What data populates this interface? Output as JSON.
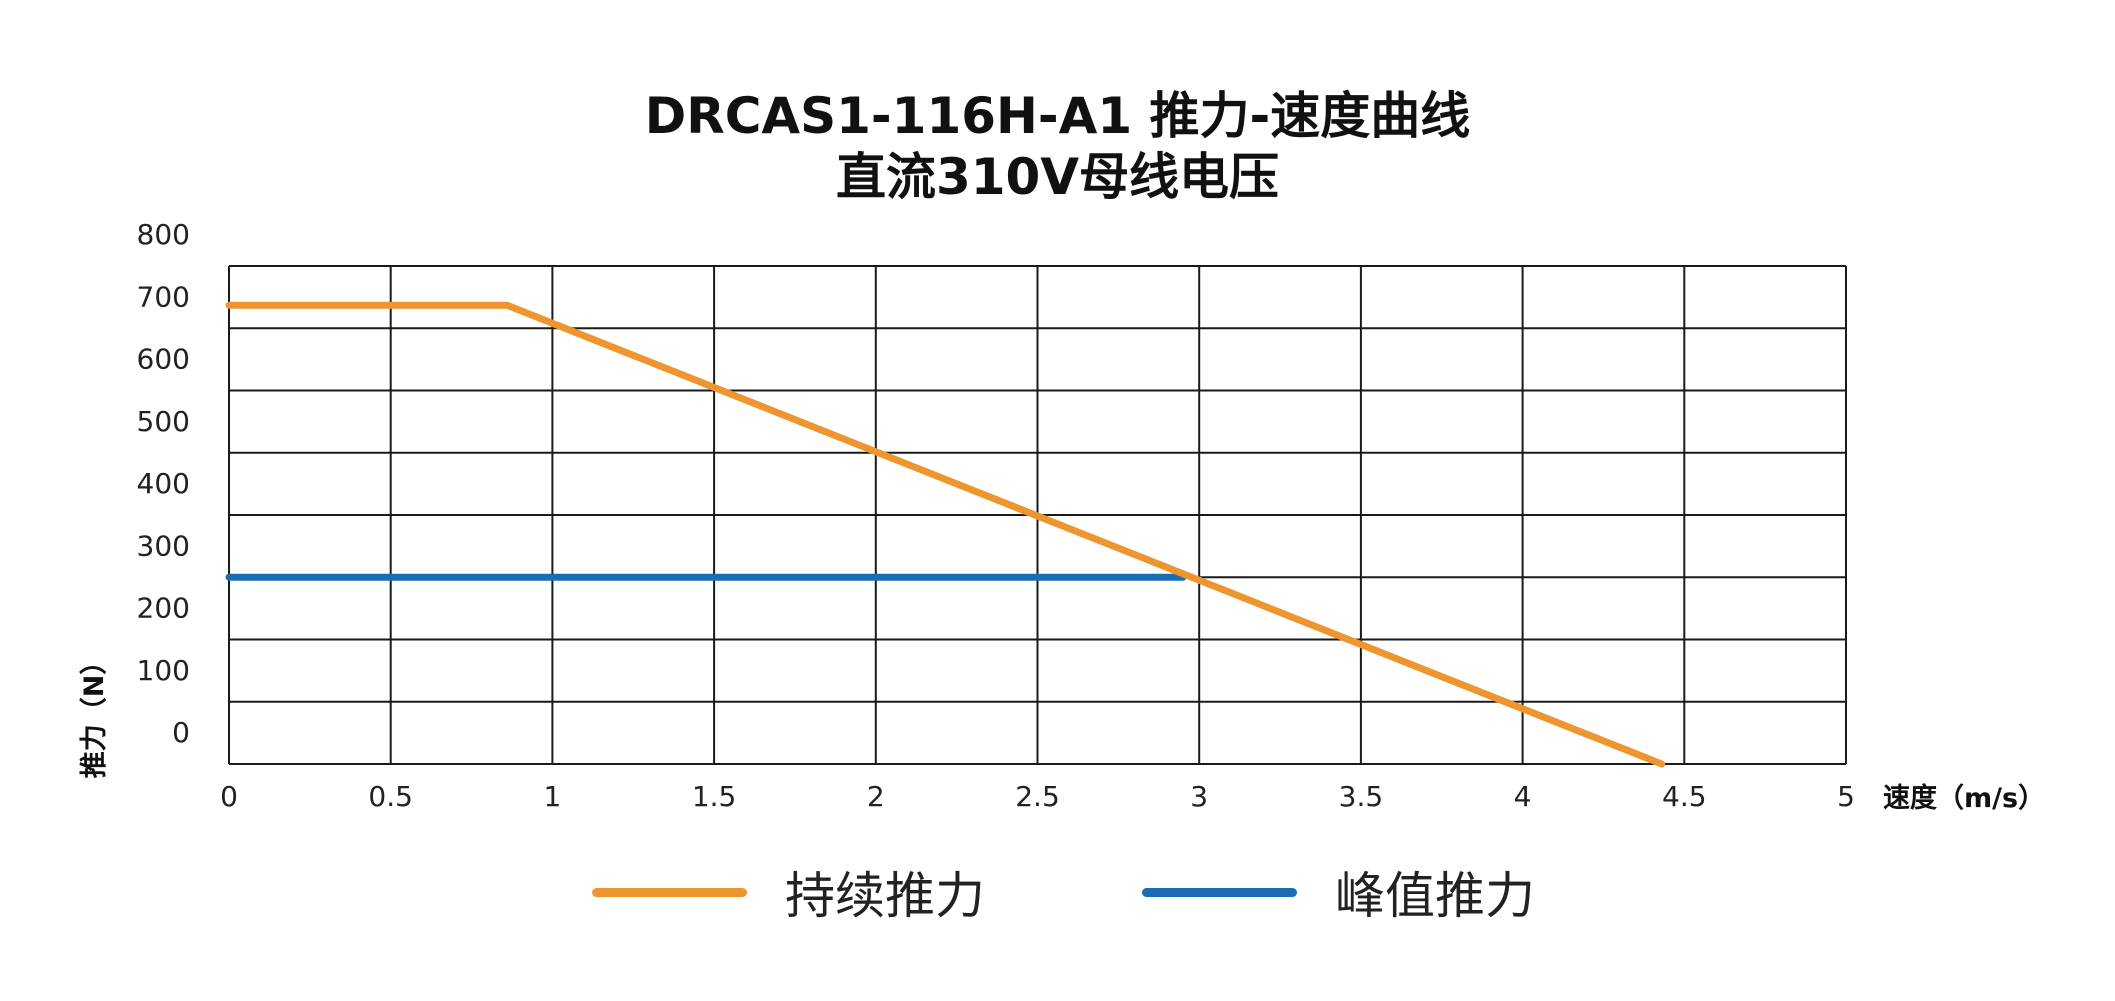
{
  "title": {
    "line1": "DRCAS1-116H-A1 推力-速度曲线",
    "line2": "直流310V母线电压"
  },
  "chart_data": {
    "type": "line",
    "title": "DRCAS1-116H-A1 推力-速度曲线 直流310V母线电压",
    "xlabel": "速度（m/s）",
    "ylabel": "推力（N）",
    "xlim": [
      0,
      5
    ],
    "ylim": [
      0,
      800
    ],
    "x_ticks": [
      "0",
      "0.5",
      "1",
      "1.5",
      "2",
      "2.5",
      "3",
      "3.5",
      "4",
      "4.5",
      "5"
    ],
    "y_ticks": [
      "0",
      "100",
      "200",
      "300",
      "400",
      "500",
      "600",
      "700",
      "800"
    ],
    "grid": true,
    "legend_position": "bottom",
    "series": [
      {
        "name": "持续推力",
        "color": "#ee9530",
        "points": [
          [
            0,
            737
          ],
          [
            0.86,
            737
          ],
          [
            4.43,
            0
          ]
        ]
      },
      {
        "name": "峰值推力",
        "color": "#1b6db3",
        "points": [
          [
            0,
            300
          ],
          [
            2.95,
            300
          ]
        ]
      }
    ]
  }
}
